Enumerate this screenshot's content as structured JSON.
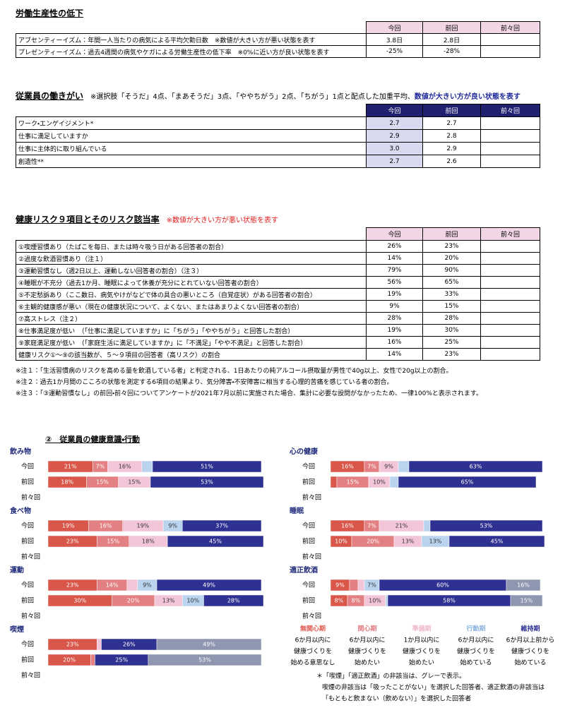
{
  "productivity": {
    "title": "労働生産性の低下",
    "columns": [
      "今回",
      "前回",
      "前々回"
    ],
    "rows": [
      {
        "label": "アブセンティーイズム：年間一人当たりの病気による平均欠勤日数　※数値が大きい方が悪い状態を表す",
        "values": [
          "3.8日",
          "2.8日"
        ]
      },
      {
        "label": "プレゼンティーイズム：過去4週間の病気やケガによる労働生産性の低下率　※0%に近い方が良い状態を表す",
        "values": [
          "-25%",
          "-28%"
        ]
      }
    ]
  },
  "engagement": {
    "title": "従業員の働きがい",
    "note": "※選択肢「そうだ」4点、「まあそうだ」3点、「ややちがう」2点、「ちがう」1点と配点した加重平均、",
    "note_emphasis": "数値が大きい方が良い状態を表す",
    "columns": [
      "今回",
      "前回",
      "前々回"
    ],
    "rows": [
      {
        "label": "ワーク・エンゲイジメント*",
        "values": [
          "2.7",
          "2.7"
        ]
      },
      {
        "label": "仕事に満足していますか",
        "values": [
          "2.9",
          "2.8"
        ]
      },
      {
        "label": "仕事に主体的に取り組んでいる",
        "values": [
          "3.0",
          "2.9"
        ]
      },
      {
        "label": "創造性**",
        "values": [
          "2.7",
          "2.6"
        ]
      }
    ]
  },
  "health_risk": {
    "title": "健康リスク９項目とそのリスク該当率",
    "note": "※数値が大きい方が悪い状態を表す",
    "columns": [
      "今回",
      "前回",
      "前々回"
    ],
    "rows": [
      {
        "label": "①喫煙習慣あり（たばこを毎日、または時々吸う日がある回答者の割合）",
        "values": [
          "26%",
          "23%"
        ]
      },
      {
        "label": "②過度な飲酒習慣あり（注１）",
        "values": [
          "14%",
          "20%"
        ]
      },
      {
        "label": "③運動習慣なし（週2日以上、運動しない回答者の割合）（注３）",
        "values": [
          "79%",
          "90%"
        ]
      },
      {
        "label": "④睡眠が不充分（過去1か月、睡眠によって休養が充分にとれていない回答者の割合）",
        "values": [
          "56%",
          "65%"
        ]
      },
      {
        "label": "⑤不定愁訴あり（ここ数日、病気やけがなどで体の具合の悪いところ（自覚症状）がある回答者の割合）",
        "values": [
          "19%",
          "33%"
        ]
      },
      {
        "label": "⑥主観的健康感が悪い（現在の健康状況について、よくない、またはあまりよくない回答者の割合）",
        "values": [
          "9%",
          "15%"
        ]
      },
      {
        "label": "⑦高ストレス（注２）",
        "values": [
          "28%",
          "28%"
        ]
      },
      {
        "label": "⑧仕事満足度が低い　（「仕事に満足していますか」に「ちがう」「ややちがう」と回答した割合）",
        "values": [
          "19%",
          "30%"
        ]
      },
      {
        "label": "⑨家庭満足度が低い　（「家庭生活に満足していますか」に「不満足」「やや不満足」と回答した割合）",
        "values": [
          "16%",
          "25%"
        ]
      },
      {
        "label": "健康リスク①～⑨の該当数が、５～９項目の回答者（高リスク）の割合",
        "values": [
          "14%",
          "23%"
        ]
      }
    ],
    "footnotes": [
      "※注１：「生活習慣病のリスクを高める量を飲酒している者」と判定される、1日あたりの純アルコール摂取量が男性で40g以上、女性で20g以上の割合。",
      "※注２：過去1か月間のこころの状態を測定する6項目の結果より、気分障害・不安障害に相当する心理的苦痛を感じている者の割合。",
      "※注３：「③運動習慣なし」の前回・前々回についてアンケートが2021年7月以前に実施された場合、集計に必要な設問がなかったため、一律100%と表示されます。"
    ]
  },
  "behavior": {
    "title": "②　従業員の健康意識・行動",
    "legend": [
      {
        "name": "無関心期",
        "color": "#e05a50",
        "lines": [
          "6か月以内に",
          "健康づくりを",
          "始める意思なし"
        ]
      },
      {
        "name": "関心期",
        "color": "#e07a80",
        "lines": [
          "6か月以内に",
          "健康づくりを",
          "始めたい"
        ]
      },
      {
        "name": "準備期",
        "color": "#eeb8cc",
        "lines": [
          "1か月以内に",
          "健康づくりを",
          "始めたい"
        ]
      },
      {
        "name": "行動期",
        "color": "#90b4e0",
        "lines": [
          "6か月以内に",
          "健康づくりを",
          "始めている"
        ]
      },
      {
        "name": "維持期",
        "color": "#2f3192",
        "lines": [
          "6か月以上前から",
          "健康づくりを",
          "始めている"
        ]
      }
    ],
    "note": [
      "＊「喫煙」「適正飲酒」の非該当は、グレーで表示。",
      "喫煙の非該当は「吸ったことがない」を選択した回答者、適正飲酒の非該当は",
      "「もともと飲まない（飲めない）」を選択した回答者"
    ]
  },
  "chart_data": [
    {
      "type": "bar",
      "orientation": "horizontal",
      "stacked": true,
      "title": "飲み物",
      "categories": [
        "今回",
        "前回",
        "前々回"
      ],
      "xlim": [
        0,
        100
      ],
      "series": [
        {
          "color": "#d9574a",
          "values": [
            21,
            18,
            null
          ],
          "value_labels": [
            "21%",
            "18%",
            null
          ]
        },
        {
          "color": "#e38083",
          "values": [
            7,
            15,
            null
          ],
          "value_labels": [
            "7%",
            "15%",
            null
          ]
        },
        {
          "color": "#f2c6d8",
          "values": [
            16,
            15,
            null
          ],
          "value_labels": [
            "16%",
            "15%",
            null
          ]
        },
        {
          "color": "#bad3ee",
          "values": [
            5,
            null,
            null
          ],
          "value_labels": [
            null,
            null,
            null
          ]
        },
        {
          "color": "#2f3192",
          "values": [
            51,
            53,
            null
          ],
          "value_labels": [
            "51%",
            "53%",
            null
          ]
        }
      ]
    },
    {
      "type": "bar",
      "orientation": "horizontal",
      "stacked": true,
      "title": "食べ物",
      "categories": [
        "今回",
        "前回",
        "前々回"
      ],
      "xlim": [
        0,
        100
      ],
      "series": [
        {
          "color": "#d9574a",
          "values": [
            19,
            23,
            null
          ],
          "value_labels": [
            "19%",
            "23%",
            null
          ]
        },
        {
          "color": "#e38083",
          "values": [
            16,
            15,
            null
          ],
          "value_labels": [
            "16%",
            "15%",
            null
          ]
        },
        {
          "color": "#f2c6d8",
          "values": [
            19,
            18,
            null
          ],
          "value_labels": [
            "19%",
            "18%",
            null
          ]
        },
        {
          "color": "#bad3ee",
          "values": [
            9,
            null,
            null
          ],
          "value_labels": [
            "9%",
            null,
            null
          ]
        },
        {
          "color": "#2f3192",
          "values": [
            37,
            45,
            null
          ],
          "value_labels": [
            "37%",
            "45%",
            null
          ]
        }
      ]
    },
    {
      "type": "bar",
      "orientation": "horizontal",
      "stacked": true,
      "title": "運動",
      "categories": [
        "今回",
        "前回",
        "前々回"
      ],
      "xlim": [
        0,
        100
      ],
      "series": [
        {
          "color": "#d9574a",
          "values": [
            23,
            30,
            null
          ],
          "value_labels": [
            "23%",
            "30%",
            null
          ]
        },
        {
          "color": "#e38083",
          "values": [
            14,
            20,
            null
          ],
          "value_labels": [
            "14%",
            "20%",
            null
          ]
        },
        {
          "color": "#f2c6d8",
          "values": [
            5,
            13,
            null
          ],
          "value_labels": [
            null,
            "13%",
            null
          ]
        },
        {
          "color": "#bad3ee",
          "values": [
            9,
            10,
            null
          ],
          "value_labels": [
            "9%",
            "10%",
            null
          ]
        },
        {
          "color": "#2f3192",
          "values": [
            49,
            28,
            null
          ],
          "value_labels": [
            "49%",
            "28%",
            null
          ]
        }
      ]
    },
    {
      "type": "bar",
      "orientation": "horizontal",
      "stacked": true,
      "title": "喫煙",
      "categories": [
        "今回",
        "前回",
        "前々回"
      ],
      "xlim": [
        0,
        100
      ],
      "series": [
        {
          "color": "#d9574a",
          "values": [
            23,
            20,
            null
          ],
          "value_labels": [
            "23%",
            "20%",
            null
          ]
        },
        {
          "color": "#e38083",
          "values": [
            null,
            2,
            null
          ],
          "value_labels": [
            null,
            null,
            null
          ]
        },
        {
          "color": "#f2c6d8",
          "values": [
            2,
            null,
            null
          ],
          "value_labels": [
            null,
            null,
            null
          ]
        },
        {
          "color": "#bad3ee",
          "values": [
            null,
            null,
            null
          ],
          "value_labels": [
            null,
            null,
            null
          ]
        },
        {
          "color": "#2f3192",
          "values": [
            26,
            25,
            null
          ],
          "value_labels": [
            "26%",
            "25%",
            null
          ]
        },
        {
          "color": "#8e96b0",
          "values": [
            49,
            53,
            null
          ],
          "value_labels": [
            "49%",
            "53%",
            null
          ]
        }
      ]
    },
    {
      "type": "bar",
      "orientation": "horizontal",
      "stacked": true,
      "title": "心の健康",
      "categories": [
        "今回",
        "前回",
        "前々回"
      ],
      "xlim": [
        0,
        100
      ],
      "series": [
        {
          "color": "#d9574a",
          "values": [
            16,
            3,
            null
          ],
          "value_labels": [
            "16%",
            null,
            null
          ]
        },
        {
          "color": "#e38083",
          "values": [
            7,
            15,
            null
          ],
          "value_labels": [
            "7%",
            "15%",
            null
          ]
        },
        {
          "color": "#f2c6d8",
          "values": [
            9,
            10,
            null
          ],
          "value_labels": [
            "9%",
            "10%",
            null
          ]
        },
        {
          "color": "#bad3ee",
          "values": [
            5,
            4,
            null
          ],
          "value_labels": [
            null,
            null,
            null
          ]
        },
        {
          "color": "#2f3192",
          "values": [
            63,
            65,
            null
          ],
          "value_labels": [
            "63%",
            "65%",
            null
          ]
        }
      ]
    },
    {
      "type": "bar",
      "orientation": "horizontal",
      "stacked": true,
      "title": "睡眠",
      "categories": [
        "今回",
        "前回",
        "前々回"
      ],
      "xlim": [
        0,
        100
      ],
      "series": [
        {
          "color": "#d9574a",
          "values": [
            16,
            10,
            null
          ],
          "value_labels": [
            "16%",
            "10%",
            null
          ]
        },
        {
          "color": "#e38083",
          "values": [
            7,
            20,
            null
          ],
          "value_labels": [
            "7%",
            "20%",
            null
          ]
        },
        {
          "color": "#f2c6d8",
          "values": [
            21,
            13,
            null
          ],
          "value_labels": [
            "21%",
            "13%",
            null
          ]
        },
        {
          "color": "#bad3ee",
          "values": [
            3,
            13,
            null
          ],
          "value_labels": [
            null,
            "13%",
            null
          ]
        },
        {
          "color": "#2f3192",
          "values": [
            53,
            45,
            null
          ],
          "value_labels": [
            "53%",
            "45%",
            null
          ]
        }
      ]
    },
    {
      "type": "bar",
      "orientation": "horizontal",
      "stacked": true,
      "title": "適正飲酒",
      "categories": [
        "今回",
        "前回",
        "前々回"
      ],
      "xlim": [
        0,
        100
      ],
      "series": [
        {
          "color": "#d9574a",
          "values": [
            9,
            8,
            null
          ],
          "value_labels": [
            "9%",
            "8%",
            null
          ]
        },
        {
          "color": "#e38083",
          "values": [
            4,
            8,
            null
          ],
          "value_labels": [
            null,
            "8%",
            null
          ]
        },
        {
          "color": "#f2c6d8",
          "values": [
            3,
            10,
            null
          ],
          "value_labels": [
            null,
            "10%",
            null
          ]
        },
        {
          "color": "#bad3ee",
          "values": [
            7,
            1,
            null
          ],
          "value_labels": [
            "7%",
            null,
            null
          ]
        },
        {
          "color": "#2f3192",
          "values": [
            60,
            58,
            null
          ],
          "value_labels": [
            "60%",
            "58%",
            null
          ]
        },
        {
          "color": "#8e96b0",
          "values": [
            16,
            15,
            null
          ],
          "value_labels": [
            "16%",
            "15%",
            null
          ]
        }
      ]
    }
  ]
}
